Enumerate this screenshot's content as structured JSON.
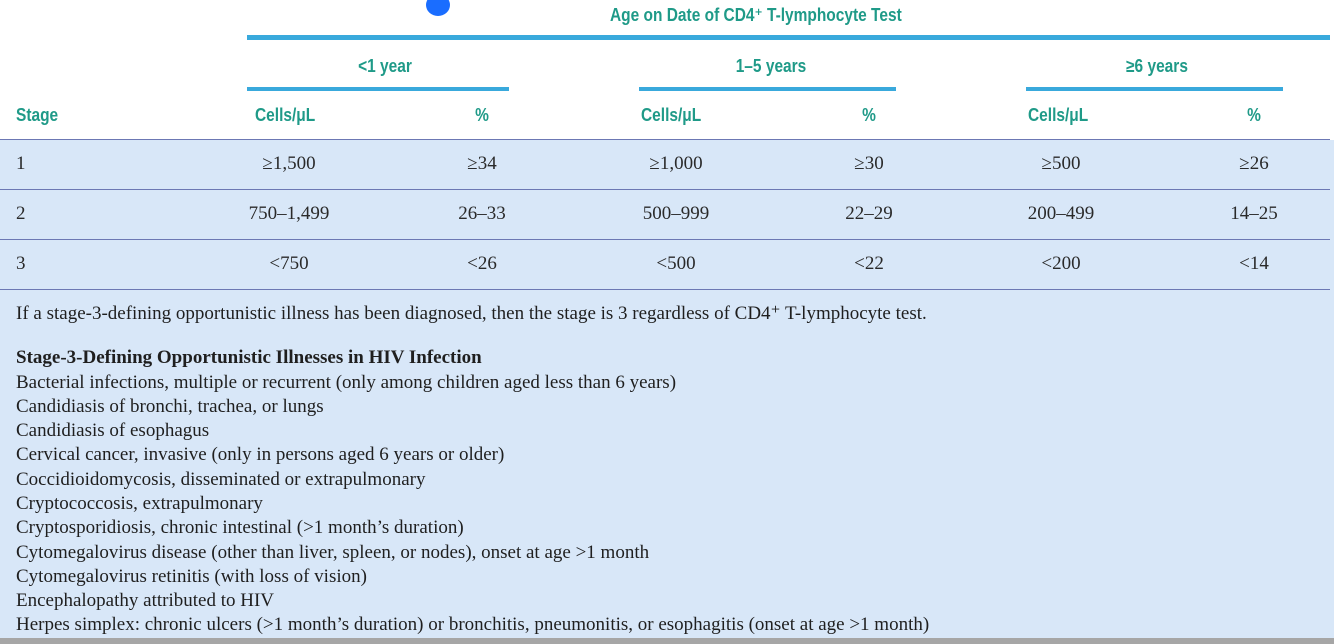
{
  "table": {
    "super_header": "Age on Date of CD4⁺ T-lymphocyte Test",
    "stage_label": "Stage",
    "groups": [
      {
        "label": "<1 year",
        "cells_label": "Cells/μL",
        "pct_label": "%"
      },
      {
        "label": "1–5 years",
        "cells_label": "Cells/μL",
        "pct_label": "%"
      },
      {
        "label": "≥6 years",
        "cells_label": "Cells/μL",
        "pct_label": "%"
      }
    ],
    "rows": [
      {
        "stage": "1",
        "values": [
          "≥1,500",
          "≥34",
          "≥1,000",
          "≥30",
          "≥500",
          "≥26"
        ]
      },
      {
        "stage": "2",
        "values": [
          "750–1,499",
          "26–33",
          "500–999",
          "22–29",
          "200–499",
          "14–25"
        ]
      },
      {
        "stage": "3",
        "values": [
          "<750",
          "<26",
          "<500",
          "<22",
          "<200",
          "<14"
        ]
      }
    ]
  },
  "notes": {
    "lead": "If a stage-3-defining opportunistic illness has been diagnosed, then the stage is 3 regardless of CD4⁺ T-lymphocyte test.",
    "title": "Stage-3-Defining Opportunistic Illnesses in HIV Infection",
    "items": [
      "Bacterial infections, multiple or recurrent (only among children aged less than 6 years)",
      "Candidiasis of bronchi, trachea, or lungs",
      "Candidiasis of esophagus",
      "Cervical cancer, invasive (only in persons aged 6 years or older)",
      "Coccidioidomycosis, disseminated or extrapulmonary",
      "Cryptococcosis, extrapulmonary",
      "Cryptosporidiosis, chronic intestinal (>1 month’s duration)",
      "Cytomegalovirus disease (other than liver, spleen, or nodes), onset at age >1 month",
      "Cytomegalovirus retinitis (with loss of vision)",
      "Encephalopathy attributed to HIV",
      "Herpes simplex: chronic ulcers (>1 month’s duration) or bronchitis, pneumonitis, or esophagitis (onset at age >1 month)"
    ]
  },
  "colors": {
    "header_text": "#1f9a88",
    "rule": "#39a9dc",
    "band": "#d8e7f8"
  }
}
